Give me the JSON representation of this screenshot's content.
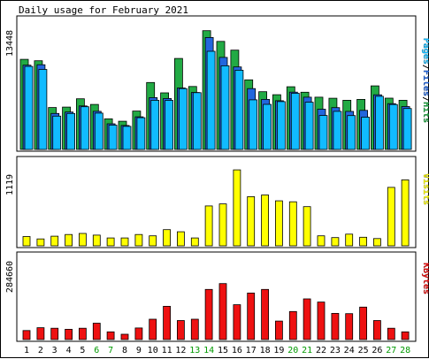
{
  "chart_data": {
    "type": "bar",
    "title": "Daily usage for February 2021",
    "categories": [
      "1",
      "2",
      "3",
      "4",
      "5",
      "6",
      "7",
      "8",
      "9",
      "10",
      "11",
      "12",
      "13",
      "14",
      "15",
      "16",
      "17",
      "18",
      "19",
      "20",
      "21",
      "22",
      "23",
      "24",
      "25",
      "26",
      "27",
      "28"
    ],
    "weekend_days": [
      "6",
      "7",
      "13",
      "14",
      "20",
      "21",
      "27",
      "28"
    ],
    "colors": {
      "hits": "#22aa44",
      "files": "#2266dd",
      "pages": "#11bbff",
      "visits": "#ffff00",
      "kbytes": "#ee1111",
      "weekday_label": "#000000",
      "weekend_label": "#009900"
    },
    "panels": [
      {
        "id": "pages-files-hits",
        "max_label": "13448",
        "ylim": [
          0,
          13448
        ],
        "legend": [
          {
            "text": "Pages",
            "color": "#11bbff"
          },
          {
            "text": "/",
            "color": "#000000"
          },
          {
            "text": "Files",
            "color": "#2266dd"
          },
          {
            "text": "/",
            "color": "#000000"
          },
          {
            "text": "Hits",
            "color": "#22aa44"
          }
        ],
        "series": [
          {
            "name": "Hits",
            "color": "#22aa44",
            "values": [
              10000,
              9850,
              4650,
              4700,
              5620,
              5000,
              3400,
              3130,
              4260,
              7430,
              6280,
              10100,
              6990,
              13180,
              12000,
              11020,
              7730,
              6410,
              6080,
              6960,
              6350,
              5800,
              5680,
              5460,
              5560,
              7060,
              5690,
              5460
            ]
          },
          {
            "name": "Files",
            "color": "#2266dd",
            "values": [
              9350,
              9400,
              4000,
              4150,
              4830,
              4230,
              2850,
              2660,
              3620,
              5750,
              5650,
              6820,
              6320,
              12430,
              10220,
              9160,
              6750,
              5560,
              5410,
              6360,
              5800,
              4470,
              4640,
              4220,
              4340,
              6070,
              5080,
              4760
            ]
          },
          {
            "name": "Pages",
            "color": "#11bbff",
            "values": [
              9220,
              8880,
              3700,
              4000,
              4740,
              4030,
              2700,
              2560,
              3520,
              5460,
              5450,
              6750,
              6300,
              10900,
              9290,
              8800,
              5510,
              5010,
              5310,
              6230,
              5240,
              3770,
              4230,
              3760,
              3580,
              5900,
              4990,
              4540
            ]
          }
        ]
      },
      {
        "id": "visits",
        "max_label": "1119",
        "ylim": [
          0,
          1119
        ],
        "legend": [
          {
            "text": "Visits",
            "color": "#ffff00"
          }
        ],
        "series": [
          {
            "name": "Visits",
            "color": "#ffff00",
            "values": [
              135,
              100,
              140,
              165,
              180,
              155,
              115,
              115,
              165,
              145,
              235,
              205,
              115,
              580,
              610,
              1105,
              715,
              740,
              655,
              640,
              570,
              145,
              120,
              170,
              125,
              105,
              850,
              960
            ]
          }
        ]
      },
      {
        "id": "kbytes",
        "max_label": "284660",
        "ylim": [
          0,
          284660
        ],
        "legend": [
          {
            "text": "KBytes",
            "color": "#ee1111"
          }
        ],
        "series": [
          {
            "name": "KBytes",
            "color": "#ee1111",
            "values": [
              34000,
              45000,
              43000,
              39000,
              43000,
              62000,
              29000,
              20000,
              44000,
              77000,
              126000,
              72000,
              77000,
              190000,
              212000,
              132000,
              176000,
              190000,
              70000,
              106000,
              154000,
              142000,
              99000,
              98000,
              123000,
              72000,
              43000,
              29000
            ]
          }
        ]
      }
    ]
  }
}
